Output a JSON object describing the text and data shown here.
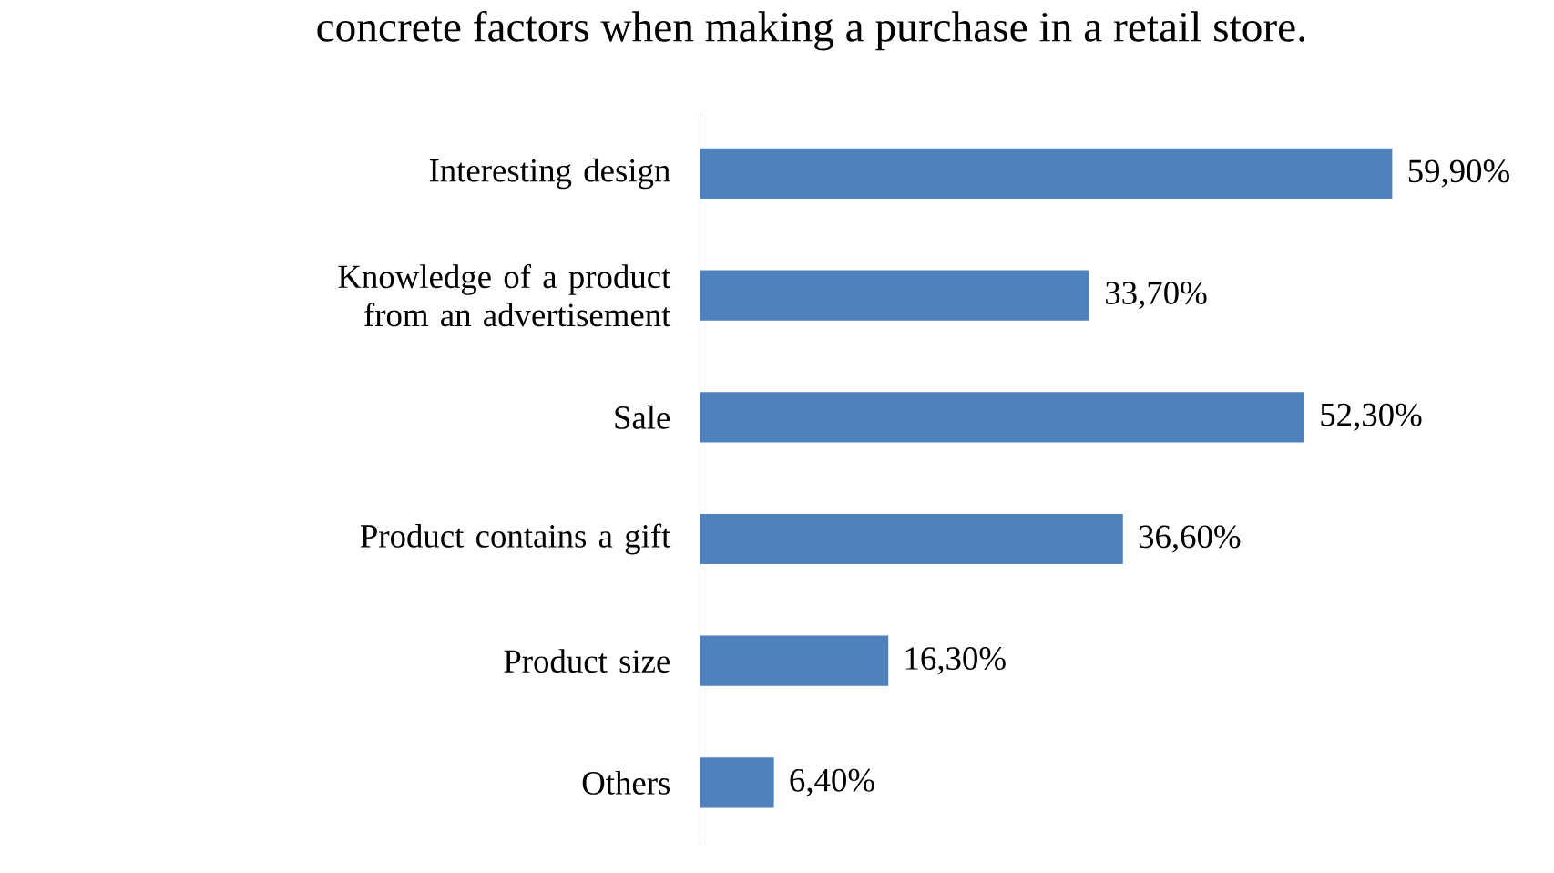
{
  "chart_data": {
    "type": "bar",
    "orientation": "horizontal",
    "title": "concrete factors when making a purchase in a retail store.",
    "categories": [
      "Interesting design",
      "Knowledge of a product from an advertisement",
      "Sale",
      "Product contains a gift",
      "Product size",
      "Others"
    ],
    "values": [
      59.9,
      33.7,
      52.3,
      36.6,
      16.3,
      6.4
    ],
    "value_labels": [
      "59,90%",
      "33,70%",
      "52,30%",
      "36,60%",
      "16,30%",
      "6,40%"
    ],
    "color": "#4f81bd"
  }
}
